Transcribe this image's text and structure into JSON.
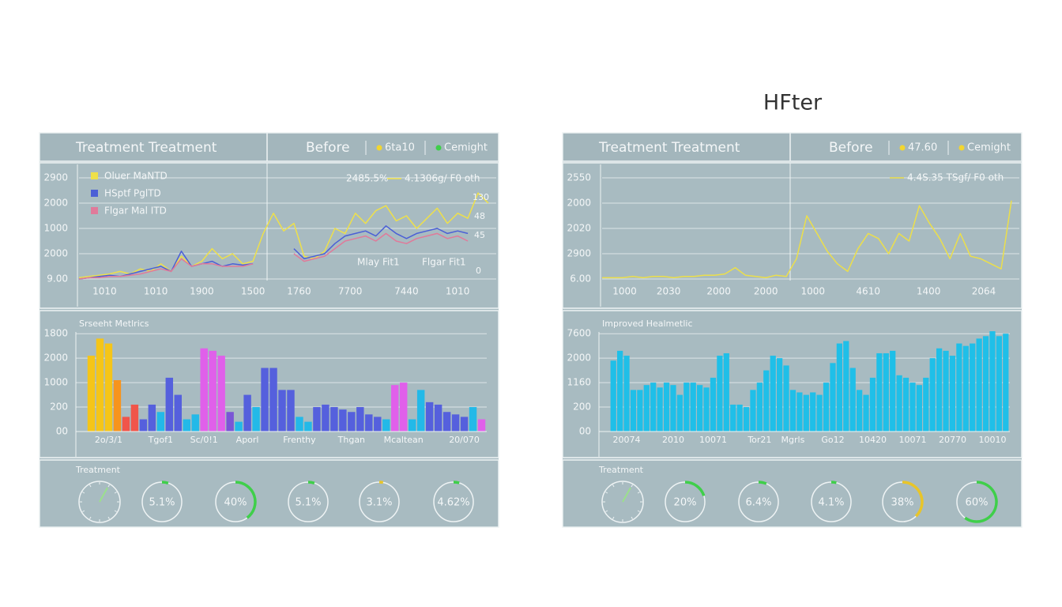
{
  "heading": "HFter",
  "panels": [
    {
      "title": "Treatment Treatment",
      "status": "Before",
      "legend": [
        {
          "label": "6ta10",
          "color": "#f2d630"
        },
        {
          "label": "Cemight",
          "color": "#3fcf4a"
        }
      ]
    },
    {
      "title": "Treatment Treatment",
      "status": "Before",
      "legend": [
        {
          "label": "47.60",
          "color": "#f2d630"
        },
        {
          "label": "Cemight",
          "color": "#f2d630"
        }
      ]
    }
  ],
  "chart_data": [
    {
      "type": "line",
      "legend": "upper left",
      "grid": true,
      "x": [
        0,
        1,
        2,
        3,
        4,
        5,
        6,
        7,
        8,
        9,
        10,
        11,
        12,
        13,
        14,
        15,
        16,
        17,
        18,
        19,
        20,
        21,
        22,
        23,
        24,
        25,
        26,
        27,
        28,
        29,
        30,
        31,
        32,
        33,
        34,
        35,
        36,
        37,
        38,
        39,
        40
      ],
      "xlim": [
        0,
        40
      ],
      "xticks": [
        {
          "value": 2.5,
          "label": "1010"
        },
        {
          "value": 7.5,
          "label": "1010"
        },
        {
          "value": 12,
          "label": "1900"
        },
        {
          "value": 17,
          "label": "1500"
        },
        {
          "value": 21.5,
          "label": "1760"
        },
        {
          "value": 26.5,
          "label": "7700"
        },
        {
          "value": 32,
          "label": "7440"
        },
        {
          "value": 37,
          "label": "1010"
        }
      ],
      "ylim": [
        0,
        4
      ],
      "yticks": [
        {
          "value": 0,
          "label": "9.00"
        },
        {
          "value": 1,
          "label": "2000"
        },
        {
          "value": 2,
          "label": "1000"
        },
        {
          "value": 3,
          "label": "2000"
        },
        {
          "value": 4,
          "label": "2900"
        }
      ],
      "series": [
        {
          "name": "Oluer MaNTD",
          "color": "#eee04a",
          "values": [
            0.05,
            0.1,
            0.15,
            0.2,
            0.3,
            0.2,
            0.4,
            0.3,
            0.6,
            0.3,
            0.9,
            0.5,
            0.7,
            1.2,
            0.8,
            1.0,
            0.6,
            0.7,
            1.8,
            2.6,
            1.9,
            2.2,
            0.9,
            0.8,
            1.1,
            2.0,
            1.8,
            2.6,
            2.2,
            2.7,
            2.9,
            2.3,
            2.5,
            2.0,
            2.4,
            2.8,
            2.2,
            2.6,
            2.4,
            3.4,
            3.0
          ]
        },
        {
          "name": "HSptf PglTD",
          "color": "#4b5fd6",
          "values": [
            0,
            0.05,
            0.1,
            0.15,
            0.1,
            0.2,
            0.3,
            0.4,
            0.5,
            0.3,
            1.1,
            0.5,
            0.6,
            0.7,
            0.5,
            0.6,
            0.55,
            0.6,
            null,
            null,
            null,
            1.2,
            0.8,
            0.9,
            1.0,
            1.4,
            1.7,
            1.8,
            1.9,
            1.7,
            2.1,
            1.8,
            1.6,
            1.8,
            1.9,
            2.0,
            1.8,
            1.9,
            1.8,
            null,
            null
          ]
        },
        {
          "name": "Flgar Mal ITD",
          "color": "#e07a9a",
          "values": [
            0,
            0.05,
            0.05,
            0.1,
            0.1,
            0.15,
            0.2,
            0.3,
            0.4,
            0.3,
            0.8,
            0.5,
            0.6,
            0.6,
            0.5,
            0.5,
            0.5,
            0.6,
            null,
            null,
            null,
            1.0,
            0.7,
            0.8,
            0.9,
            1.2,
            1.5,
            1.6,
            1.7,
            1.5,
            1.8,
            1.5,
            1.4,
            1.6,
            1.7,
            1.8,
            1.6,
            1.7,
            1.5,
            null,
            null
          ]
        }
      ],
      "annotations": [
        {
          "text": "2485.5%"
        },
        {
          "text": "4.1306g/ F0 oth",
          "color": "#eee04a"
        },
        {
          "text": "Mlay Fit1"
        },
        {
          "text": "Flgar Fit1"
        },
        {
          "text": "130"
        },
        {
          "text": "48"
        },
        {
          "text": "45"
        },
        {
          "text": "0"
        }
      ]
    },
    {
      "type": "bar",
      "title": "Srseeht Metlrics",
      "grid": true,
      "categories": [
        null,
        null,
        "2o/3/1",
        null,
        null,
        null,
        null,
        null,
        "Tgof1",
        null,
        null,
        null,
        null,
        "Sc/0!1",
        null,
        null,
        null,
        null,
        "Aporl",
        null,
        null,
        null,
        null,
        null,
        "Frenthy",
        null,
        null,
        null,
        null,
        null,
        "Thgan",
        null,
        null,
        null,
        null,
        null,
        "Mcaltean",
        null,
        null,
        null,
        null,
        null,
        null,
        "20/070",
        null,
        null
      ],
      "values": [
        3.1,
        3.8,
        3.6,
        2.1,
        0.6,
        1.1,
        0.5,
        1.1,
        0.8,
        2.2,
        1.5,
        0.5,
        0.7,
        3.4,
        3.3,
        3.1,
        0.8,
        0.4,
        1.5,
        1.0,
        2.6,
        2.6,
        1.7,
        1.7,
        0.6,
        0.4,
        1.0,
        1.1,
        1.0,
        0.9,
        0.8,
        1.0,
        0.7,
        0.6,
        0.5,
        1.9,
        2.0,
        0.5,
        1.7,
        1.2,
        1.1,
        0.8,
        0.7,
        0.6,
        1.0,
        0.5
      ],
      "colors": [
        "#f5c518",
        "#f5c518",
        "#f5c518",
        "#f7941d",
        "#f0554a",
        "#f0554a",
        "#5560dd",
        "#5560dd",
        "#23b9e8",
        "#5560dd",
        "#5560dd",
        "#23b9e8",
        "#23b9e8",
        "#e060ea",
        "#e060ea",
        "#e060ea",
        "#7a55d6",
        "#23b9e8",
        "#5560dd",
        "#23b9e8",
        "#5560dd",
        "#5560dd",
        "#5560dd",
        "#5560dd",
        "#23b9e8",
        "#23b9e8",
        "#5560dd",
        "#5560dd",
        "#5560dd",
        "#5560dd",
        "#5560dd",
        "#5560dd",
        "#5560dd",
        "#5560dd",
        "#23b9e8",
        "#e060ea",
        "#e060ea",
        "#23b9e8",
        "#23b9e8",
        "#5560dd",
        "#5560dd",
        "#5560dd",
        "#5560dd",
        "#5560dd",
        "#23b9e8",
        "#e060ea"
      ],
      "ylim": [
        0,
        4.2
      ],
      "yticks": [
        {
          "value": 0,
          "label": "00"
        },
        {
          "value": 1,
          "label": "200"
        },
        {
          "value": 2,
          "label": "1000"
        },
        {
          "value": 3,
          "label": "2000"
        },
        {
          "value": 4,
          "label": "1800"
        }
      ]
    },
    {
      "type": "gauge",
      "title": "Treatment",
      "values": [
        5.1,
        40,
        5.1,
        3.1,
        4.62
      ],
      "value_labels": [
        "5.1%",
        "40%",
        "5.1%",
        "3.1%",
        "4.62%"
      ],
      "colors": [
        "#3fcf4a",
        "#3fcf4a",
        "#3fcf4a",
        "#e8c52a",
        "#3fcf4a"
      ]
    },
    {
      "type": "line",
      "grid": true,
      "x": [
        0,
        1,
        2,
        3,
        4,
        5,
        6,
        7,
        8,
        9,
        10,
        11,
        12,
        13,
        14,
        15,
        16,
        17,
        18,
        19,
        20,
        21,
        22,
        23,
        24,
        25,
        26,
        27,
        28,
        29,
        30,
        31,
        32,
        33,
        34,
        35,
        36,
        37,
        38,
        39,
        40
      ],
      "xlim": [
        0,
        40
      ],
      "xticks": [
        {
          "value": 2.2,
          "label": "1000"
        },
        {
          "value": 6.5,
          "label": "2030"
        },
        {
          "value": 11.4,
          "label": "2000"
        },
        {
          "value": 16,
          "label": "2000"
        },
        {
          "value": 20.6,
          "label": "1000"
        },
        {
          "value": 26,
          "label": "4610"
        },
        {
          "value": 31.9,
          "label": "1400"
        },
        {
          "value": 37.3,
          "label": "2064"
        }
      ],
      "ylim": [
        0,
        4
      ],
      "yticks": [
        {
          "value": 0,
          "label": "6.00"
        },
        {
          "value": 1,
          "label": "2900"
        },
        {
          "value": 2,
          "label": "2020"
        },
        {
          "value": 3,
          "label": "2000"
        },
        {
          "value": 4,
          "label": "2550"
        }
      ],
      "series": [
        {
          "color": "#ecdf4a",
          "values": [
            0.05,
            0.05,
            0.05,
            0.1,
            0.05,
            0.1,
            0.1,
            0.05,
            0.1,
            0.1,
            0.15,
            0.15,
            0.2,
            0.45,
            0.15,
            0.1,
            0.05,
            0.15,
            0.1,
            0.8,
            2.5,
            1.8,
            1.1,
            0.6,
            0.3,
            1.2,
            1.8,
            1.6,
            1.0,
            1.8,
            1.5,
            2.9,
            2.2,
            1.6,
            0.8,
            1.8,
            0.9,
            0.8,
            0.6,
            0.4,
            3.1
          ]
        }
      ],
      "annotations": [
        {
          "text": "4.4S.35 TSgf/ F0 oth",
          "color": "#ecdf4a"
        }
      ]
    },
    {
      "type": "bar",
      "title": "Improved Healmetlic",
      "grid": true,
      "color": "#1fbfe8",
      "categories": [
        null,
        null,
        "20074",
        null,
        null,
        null,
        null,
        null,
        null,
        "2010",
        null,
        null,
        null,
        null,
        null,
        "10071",
        null,
        null,
        null,
        null,
        null,
        null,
        "Tor21",
        null,
        null,
        null,
        null,
        "Mgrls",
        null,
        null,
        null,
        null,
        null,
        "Go12",
        null,
        null,
        null,
        null,
        null,
        "10420",
        null,
        null,
        null,
        null,
        null,
        "10071",
        null,
        null,
        null,
        null,
        null,
        "20770",
        null,
        null,
        null,
        null,
        null,
        "10010",
        null,
        null
      ],
      "values": [
        2.9,
        3.3,
        3.1,
        1.7,
        1.7,
        1.9,
        2.0,
        1.8,
        2.0,
        1.9,
        1.5,
        2.0,
        2.0,
        1.9,
        1.8,
        2.2,
        3.1,
        3.2,
        1.1,
        1.1,
        1.0,
        1.7,
        2.0,
        2.5,
        3.1,
        3.0,
        2.7,
        1.7,
        1.6,
        1.5,
        1.6,
        1.5,
        2.0,
        2.8,
        3.6,
        3.7,
        2.6,
        1.7,
        1.5,
        2.2,
        3.2,
        3.2,
        3.3,
        2.3,
        2.2,
        2.0,
        1.9,
        2.2,
        3.0,
        3.4,
        3.3,
        3.1,
        3.6,
        3.5,
        3.6,
        3.8,
        3.9,
        4.1,
        3.9,
        4.0
      ],
      "ylim": [
        0,
        4.2
      ],
      "yticks": [
        {
          "value": 0,
          "label": "00"
        },
        {
          "value": 1,
          "label": "200"
        },
        {
          "value": 2,
          "label": "1160"
        },
        {
          "value": 3,
          "label": "2000"
        },
        {
          "value": 4,
          "label": "7600"
        }
      ]
    },
    {
      "type": "gauge",
      "title": "Treatment",
      "values": [
        20,
        6.4,
        4.1,
        38,
        60
      ],
      "value_labels": [
        "20%",
        "6.4%",
        "4.1%",
        "38%",
        "60%"
      ],
      "colors": [
        "#3fcf4a",
        "#3fcf4a",
        "#3fcf4a",
        "#e8c52a",
        "#3fcf4a"
      ]
    }
  ]
}
